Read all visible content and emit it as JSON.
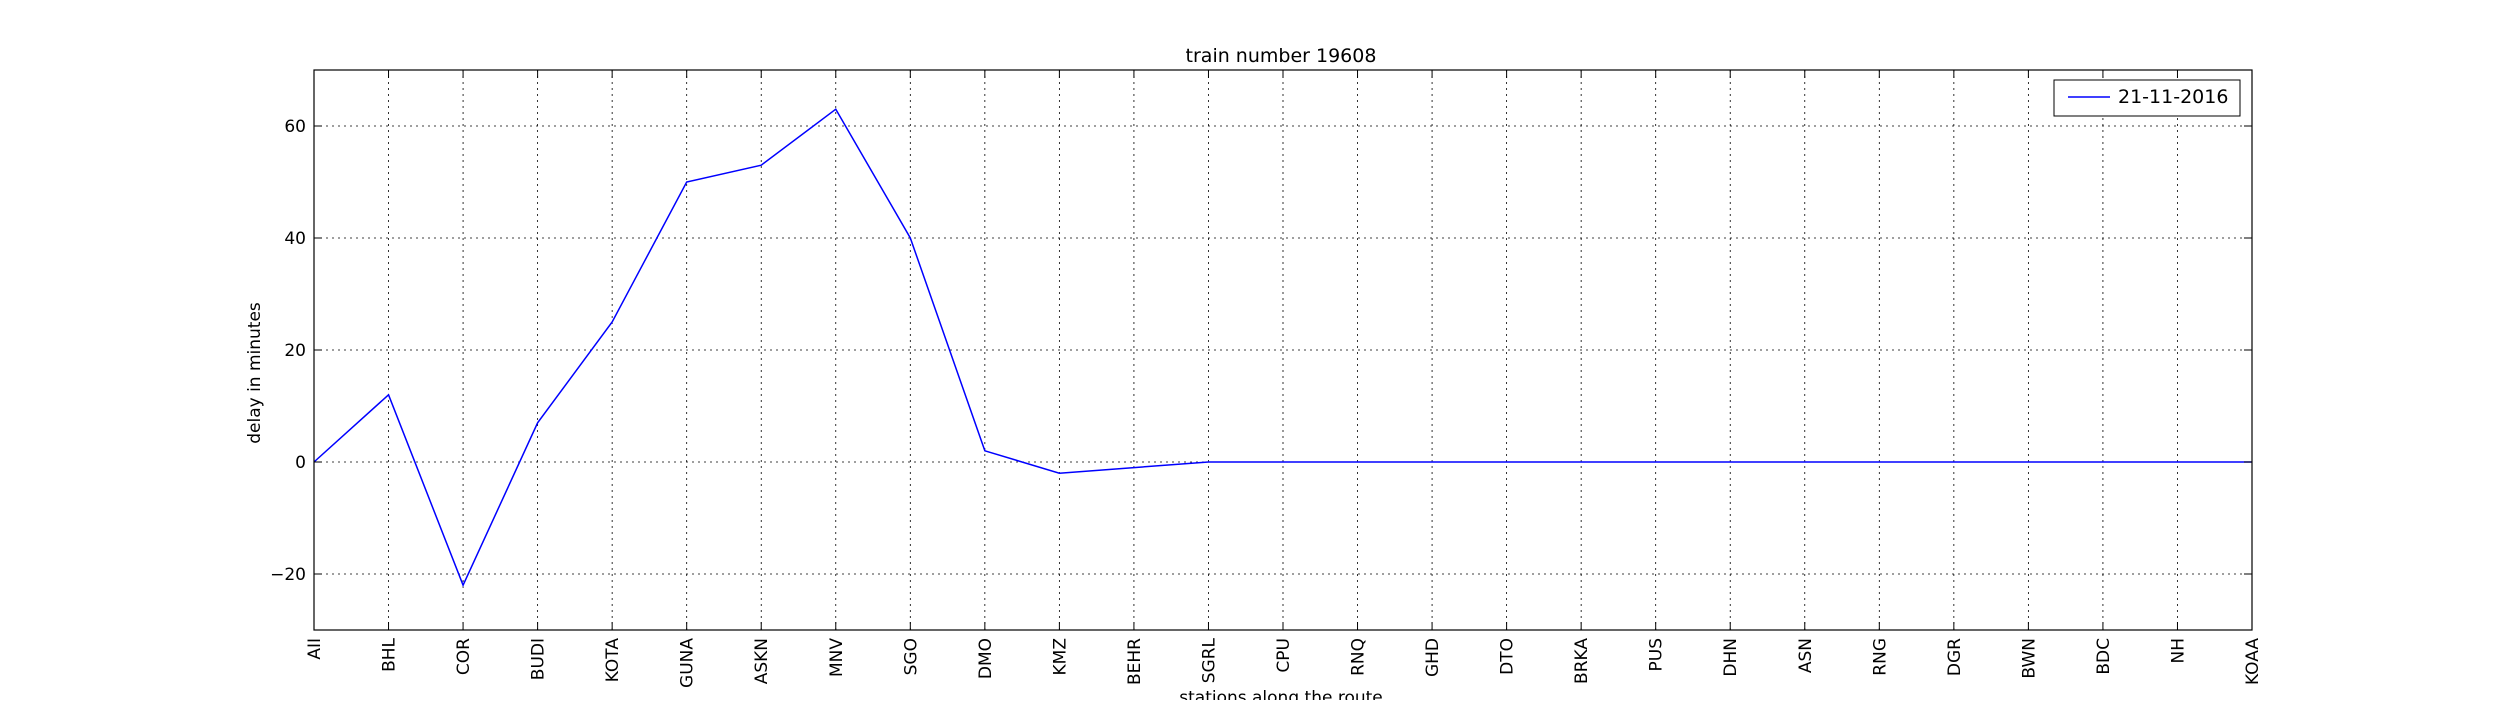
{
  "chart_data": {
    "type": "line",
    "title": "train number 19608",
    "xlabel": "stations along the route",
    "ylabel": "delay in minutes",
    "categories": [
      "AII",
      "BHL",
      "COR",
      "BUDI",
      "KOTA",
      "GUNA",
      "ASKN",
      "MNV",
      "SGO",
      "DMO",
      "KMZ",
      "BEHR",
      "SGRL",
      "CPU",
      "RNQ",
      "GHD",
      "DTO",
      "BRKA",
      "PUS",
      "DHN",
      "ASN",
      "RNG",
      "DGR",
      "BWN",
      "BDC",
      "NH",
      "KOAA"
    ],
    "series": [
      {
        "name": "21-11-2016",
        "values": [
          0,
          12,
          -22,
          7,
          25,
          50,
          53,
          63,
          40,
          2,
          -2,
          -1,
          0,
          0,
          0,
          0,
          0,
          0,
          0,
          0,
          0,
          0,
          0,
          0,
          0,
          0,
          0
        ],
        "color": "#0000ff"
      }
    ],
    "ylim": [
      -30,
      70
    ],
    "yticks": [
      -20,
      0,
      20,
      40,
      60
    ],
    "ytick_labels": [
      "−20",
      "0",
      "20",
      "40",
      "60"
    ],
    "grid": true,
    "legend_position": "top-right"
  }
}
